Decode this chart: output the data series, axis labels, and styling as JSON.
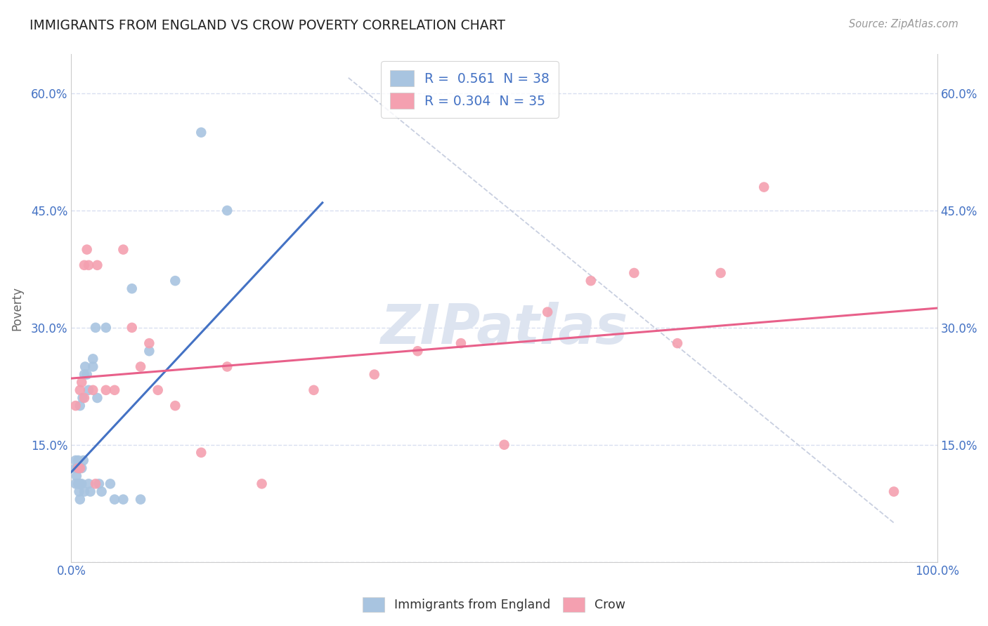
{
  "title": "IMMIGRANTS FROM ENGLAND VS CROW POVERTY CORRELATION CHART",
  "source_text": "Source: ZipAtlas.com",
  "ylabel": "Poverty",
  "legend_label_bottom": [
    "Immigrants from England",
    "Crow"
  ],
  "blue_R": 0.561,
  "blue_N": 38,
  "pink_R": 0.304,
  "pink_N": 35,
  "blue_color": "#a8c4e0",
  "pink_color": "#f4a0b0",
  "blue_line_color": "#4472c4",
  "pink_line_color": "#e8608a",
  "diag_line_color": "#c8cfe0",
  "background_color": "#ffffff",
  "grid_color": "#d8dff0",
  "title_color": "#222222",
  "axis_label_color": "#666666",
  "watermark_color": "#dde4f0",
  "tick_color": "#4472c4",
  "blue_scatter_x": [
    0.005,
    0.005,
    0.005,
    0.006,
    0.007,
    0.008,
    0.008,
    0.009,
    0.01,
    0.01,
    0.01,
    0.012,
    0.012,
    0.013,
    0.014,
    0.015,
    0.015,
    0.016,
    0.018,
    0.02,
    0.02,
    0.022,
    0.025,
    0.025,
    0.028,
    0.03,
    0.032,
    0.035,
    0.04,
    0.045,
    0.05,
    0.06,
    0.07,
    0.08,
    0.09,
    0.12,
    0.15,
    0.18
  ],
  "blue_scatter_y": [
    0.1,
    0.12,
    0.13,
    0.11,
    0.12,
    0.1,
    0.13,
    0.09,
    0.08,
    0.1,
    0.2,
    0.1,
    0.12,
    0.21,
    0.13,
    0.09,
    0.24,
    0.25,
    0.24,
    0.22,
    0.1,
    0.09,
    0.26,
    0.25,
    0.3,
    0.21,
    0.1,
    0.09,
    0.3,
    0.1,
    0.08,
    0.08,
    0.35,
    0.08,
    0.27,
    0.36,
    0.55,
    0.45
  ],
  "pink_scatter_x": [
    0.005,
    0.008,
    0.01,
    0.01,
    0.012,
    0.015,
    0.015,
    0.018,
    0.02,
    0.025,
    0.028,
    0.03,
    0.04,
    0.05,
    0.06,
    0.07,
    0.08,
    0.09,
    0.1,
    0.12,
    0.15,
    0.18,
    0.22,
    0.28,
    0.35,
    0.4,
    0.45,
    0.5,
    0.55,
    0.6,
    0.65,
    0.7,
    0.75,
    0.8,
    0.95
  ],
  "pink_scatter_y": [
    0.2,
    0.12,
    0.12,
    0.22,
    0.23,
    0.21,
    0.38,
    0.4,
    0.38,
    0.22,
    0.1,
    0.38,
    0.22,
    0.22,
    0.4,
    0.3,
    0.25,
    0.28,
    0.22,
    0.2,
    0.14,
    0.25,
    0.1,
    0.22,
    0.24,
    0.27,
    0.28,
    0.15,
    0.32,
    0.36,
    0.37,
    0.28,
    0.37,
    0.48,
    0.09
  ],
  "blue_line_x": [
    0.0,
    0.29
  ],
  "blue_line_y": [
    0.115,
    0.46
  ],
  "pink_line_x": [
    0.0,
    1.0
  ],
  "pink_line_y": [
    0.235,
    0.325
  ],
  "diag_line_x": [
    0.32,
    0.95
  ],
  "diag_line_y": [
    0.62,
    0.05
  ],
  "xlim": [
    0.0,
    1.0
  ],
  "ylim": [
    0.0,
    0.65
  ],
  "ytick_vals": [
    0.0,
    0.15,
    0.3,
    0.45,
    0.6
  ],
  "ytick_labels_left": [
    "",
    "15.0%",
    "30.0%",
    "45.0%",
    "60.0%"
  ],
  "ytick_labels_right": [
    "",
    "15.0%",
    "30.0%",
    "45.0%",
    "60.0%"
  ],
  "xtick_vals": [
    0.0,
    1.0
  ],
  "xtick_labels": [
    "0.0%",
    "100.0%"
  ]
}
